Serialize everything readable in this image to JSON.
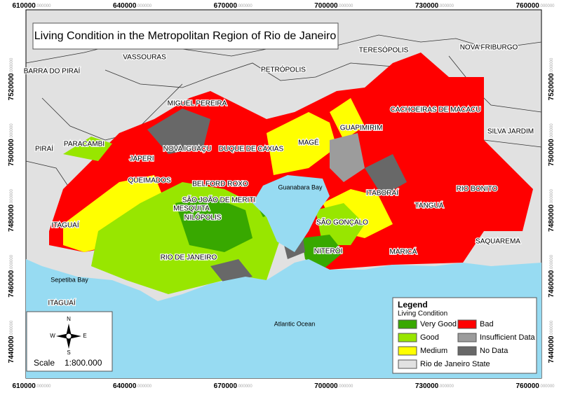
{
  "title": "Living Condition in the Metropolitan Region of Rio de Janeiro",
  "x_coordinates": [
    {
      "main": "610000",
      "decimals": ".000000"
    },
    {
      "main": "640000",
      "decimals": ".000000"
    },
    {
      "main": "670000",
      "decimals": ".000000"
    },
    {
      "main": "700000",
      "decimals": ".000000"
    },
    {
      "main": "730000",
      "decimals": ".000000"
    },
    {
      "main": "760000",
      "decimals": ".000000"
    }
  ],
  "y_coordinates": [
    {
      "main": "7520000",
      "decimals": ".000000"
    },
    {
      "main": "7500000",
      "decimals": ".000000"
    },
    {
      "main": "7480000",
      "decimals": ".000000"
    },
    {
      "main": "7460000",
      "decimals": ".000000"
    },
    {
      "main": "7440000",
      "decimals": ".000000"
    }
  ],
  "places": [
    "VASSOURAS",
    "BARRA DO PIRAÍ",
    "PETRÓPOLIS",
    "TERESÓPOLIS",
    "NOVA FRIBURGO",
    "MIGUEL PEREIRA",
    "CACHOEIRAS DE MACACU",
    "SILVA JARDIM",
    "PIRAÍ",
    "PARACAMBI",
    "NOVA IGUAÇU",
    "DUQUE DE CAXIAS",
    "MAGÉ",
    "GUAPIMIRIM",
    "JAPERI",
    "QUEIMADOS",
    "BELFORD ROXO",
    "SÃO JOÃO DE MERITI",
    "MESQUITA",
    "NILÓPOLIS",
    "ITAGUAÍ",
    "SÃO GONÇALO",
    "NITERÓI",
    "ITABORAÍ",
    "TANGUÁ",
    "RIO BONITO",
    "MARICÁ",
    "SAQUAREMA",
    "RIO DE JANEIRO",
    "ITAGUAÍ"
  ],
  "water_labels": [
    "Guanabara Bay",
    "Sepetiba Bay",
    "Atlantic Ocean"
  ],
  "legend": {
    "title": "Legend",
    "subtitle": "Living Condition",
    "items": [
      {
        "label": "Very Good",
        "color": "#38a800"
      },
      {
        "label": "Bad",
        "color": "#ff0000"
      },
      {
        "label": "Good",
        "color": "#98e600"
      },
      {
        "label": "Insufficient Data",
        "color": "#9c9c9c"
      },
      {
        "label": "Medium",
        "color": "#ffff00"
      },
      {
        "label": "No Data",
        "color": "#686868"
      },
      {
        "label": "Rio de Janeiro State",
        "color": "#e1e1e1"
      }
    ]
  },
  "scale": {
    "label": "Scale",
    "value": "1:800.000"
  },
  "compass": {
    "n": "N",
    "s": "S",
    "e": "E",
    "w": "W"
  }
}
